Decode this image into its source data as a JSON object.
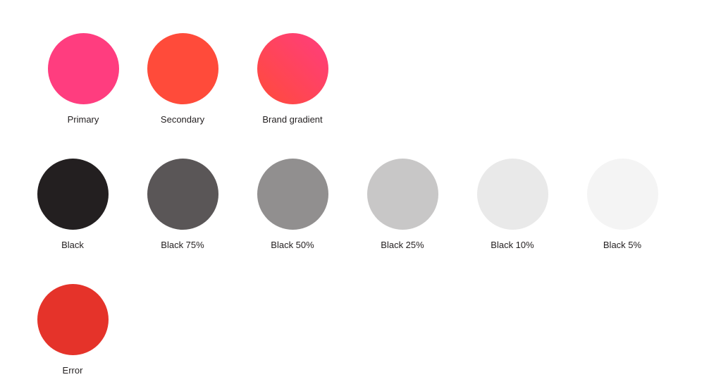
{
  "palette": {
    "brand": [
      {
        "name": "Primary",
        "color": "#ff3d7f"
      },
      {
        "name": "Secondary",
        "color": "#ff4b3a"
      },
      {
        "name": "Brand gradient",
        "gradient": [
          "#ff4b3a",
          "#ff3d7f"
        ]
      }
    ],
    "neutrals": [
      {
        "name": "Black",
        "color": "#231f20"
      },
      {
        "name": "Black 75%",
        "color": "#5a5657"
      },
      {
        "name": "Black 50%",
        "color": "#918f8f"
      },
      {
        "name": "Black 25%",
        "color": "#c8c7c7"
      },
      {
        "name": "Black 10%",
        "color": "#e9e9e9"
      },
      {
        "name": "Black 5%",
        "color": "#f4f4f4"
      }
    ],
    "status": [
      {
        "name": "Error",
        "color": "#e5332a"
      }
    ]
  }
}
